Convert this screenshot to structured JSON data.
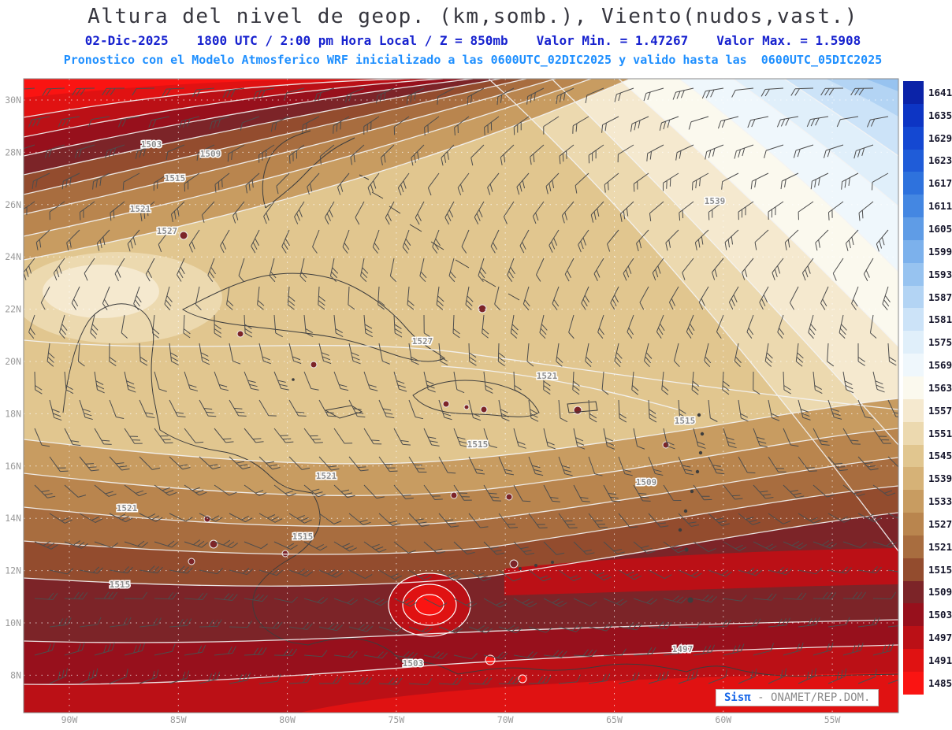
{
  "header": {
    "title": "Altura del nivel de geop. (km,somb.), Viento(nudos,vast.)",
    "line2": {
      "datetime": "02-Dic-2025",
      "detail": "1800 UTC / 2:00 pm Hora Local / Z = 850mb",
      "min": "Valor Min. = 1.47267",
      "max": "Valor Max. = 1.5908"
    },
    "line3": "Pronostico con el Modelo Atmosferico WRF inicializado a las 0600UTC_02DIC2025 y valido hasta las  0600UTC_05DIC2025"
  },
  "branding": {
    "app": "Sisπ",
    "org": "- ONAMET/REP.DOM."
  },
  "chart_data": {
    "type": "heatmap",
    "title": "Altura del nivel de geop. (km,somb.), Viento(nudos,vast.)",
    "variable_shaded": "Altura del nivel de geopotencial (km, sombreado)",
    "variable_vectors": "Viento (nudos, vastagos)",
    "level": "850mb",
    "valid_time": "02-Dic-2025 1800 UTC / 2:00 pm Hora Local",
    "model": "WRF inicializado 0600UTC_02DIC2025, valido hasta 0600UTC_05DIC2025",
    "value_min": 1.47267,
    "value_max": 1.5908,
    "x_ticks": [
      "90W",
      "85W",
      "80W",
      "75W",
      "70W",
      "65W",
      "60W",
      "55W"
    ],
    "y_ticks": [
      "30N",
      "28N",
      "26N",
      "24N",
      "22N",
      "20N",
      "18N",
      "16N",
      "14N",
      "12N",
      "10N",
      "8N"
    ],
    "colorbar": {
      "position": "right",
      "levels": [
        {
          "value": 1641,
          "color": "#0b23a8"
        },
        {
          "value": 1635,
          "color": "#0d35c4"
        },
        {
          "value": 1629,
          "color": "#1448d2"
        },
        {
          "value": 1623,
          "color": "#1f5cd8"
        },
        {
          "value": 1617,
          "color": "#2e72dd"
        },
        {
          "value": 1611,
          "color": "#4487e2"
        },
        {
          "value": 1605,
          "color": "#5f9ce6"
        },
        {
          "value": 1599,
          "color": "#7cb1ec"
        },
        {
          "value": 1593,
          "color": "#97c3f0"
        },
        {
          "value": 1587,
          "color": "#b3d4f4"
        },
        {
          "value": 1581,
          "color": "#cce3f8"
        },
        {
          "value": 1575,
          "color": "#e0effa"
        },
        {
          "value": 1569,
          "color": "#eff7fc"
        },
        {
          "value": 1563,
          "color": "#fbf9ee"
        },
        {
          "value": 1557,
          "color": "#f5e9cf"
        },
        {
          "value": 1551,
          "color": "#ecd9af"
        },
        {
          "value": 1545,
          "color": "#e1c68f"
        },
        {
          "value": 1539,
          "color": "#d6b277"
        },
        {
          "value": 1533,
          "color": "#c89c61"
        },
        {
          "value": 1527,
          "color": "#b9854e"
        },
        {
          "value": 1521,
          "color": "#a86d3f"
        },
        {
          "value": 1515,
          "color": "#934c2e"
        },
        {
          "value": 1509,
          "color": "#7c2428"
        },
        {
          "value": 1503,
          "color": "#97101c"
        },
        {
          "value": 1497,
          "color": "#bb1016"
        },
        {
          "value": 1491,
          "color": "#e01212"
        },
        {
          "value": 1485,
          "color": "#fa1412"
        }
      ]
    },
    "contour_labels": [
      {
        "text": "1503",
        "x": 192,
        "y": 187
      },
      {
        "text": "1509",
        "x": 267,
        "y": 199
      },
      {
        "text": "1515",
        "x": 222,
        "y": 230
      },
      {
        "text": "1521",
        "x": 178,
        "y": 269
      },
      {
        "text": "1527",
        "x": 212,
        "y": 297
      },
      {
        "text": "1539",
        "x": 907,
        "y": 259
      },
      {
        "text": "1527",
        "x": 536,
        "y": 437
      },
      {
        "text": "1521",
        "x": 694,
        "y": 481
      },
      {
        "text": "1515",
        "x": 606,
        "y": 568
      },
      {
        "text": "1515",
        "x": 869,
        "y": 538
      },
      {
        "text": "1521",
        "x": 414,
        "y": 608
      },
      {
        "text": "1509",
        "x": 820,
        "y": 616
      },
      {
        "text": "1521",
        "x": 161,
        "y": 649
      },
      {
        "text": "1515",
        "x": 384,
        "y": 685
      },
      {
        "text": "1515",
        "x": 152,
        "y": 746
      },
      {
        "text": "1503",
        "x": 524,
        "y": 846
      },
      {
        "text": "1497",
        "x": 866,
        "y": 828
      }
    ]
  }
}
